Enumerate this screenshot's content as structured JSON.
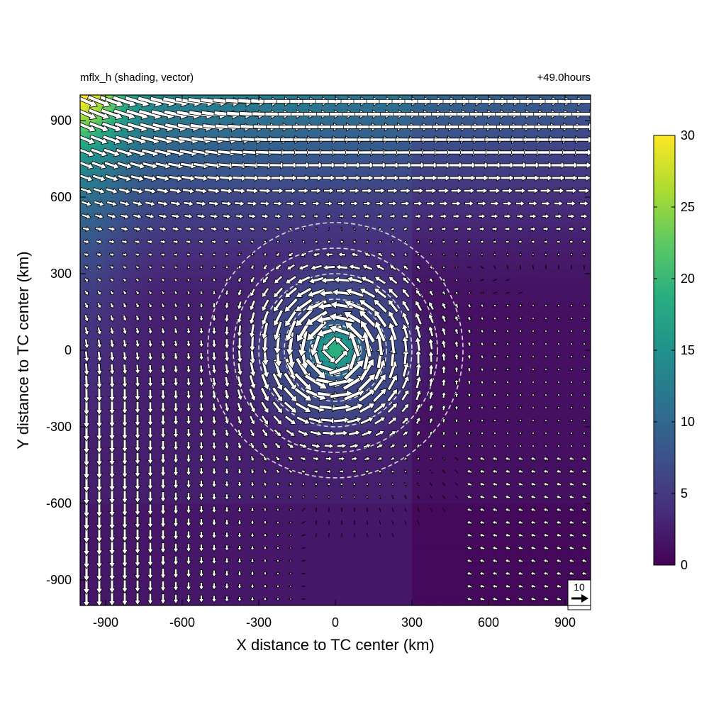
{
  "chart_data": {
    "type": "heatmap",
    "title_left": "mflx_h (shading, vector)",
    "title_right": "+49.0hours",
    "xlabel": "X distance to TC center (km)",
    "ylabel": "Y distance to TC center (km)",
    "xlim": [
      -1000,
      1000
    ],
    "ylim": [
      -1000,
      1000
    ],
    "xticks": [
      -900,
      -600,
      -300,
      0,
      300,
      600,
      900
    ],
    "yticks": [
      -900,
      -600,
      -300,
      0,
      300,
      600,
      900
    ],
    "xtick_labels": [
      "-900",
      "-600",
      "-300",
      "0",
      "300",
      "600",
      "900"
    ],
    "ytick_labels": [
      "-900",
      "-600",
      "-300",
      "0",
      "300",
      "600",
      "900"
    ],
    "colorbar": {
      "min": 0,
      "max": 30,
      "ticks": [
        0,
        5,
        10,
        15,
        20,
        25,
        30
      ],
      "tick_labels": [
        "0",
        "5",
        "10",
        "15",
        "20",
        "25",
        "30"
      ],
      "colormap": "viridis"
    },
    "reference_vector": {
      "label": "10",
      "value": 10
    },
    "range_circles_km": [
      100,
      200,
      300,
      400,
      500
    ],
    "vector_grid_spacing_km": 50,
    "colors": {
      "circle": "#d8d8d8",
      "arrow_fill": "#ffffff",
      "arrow_edge": "#000000"
    }
  }
}
